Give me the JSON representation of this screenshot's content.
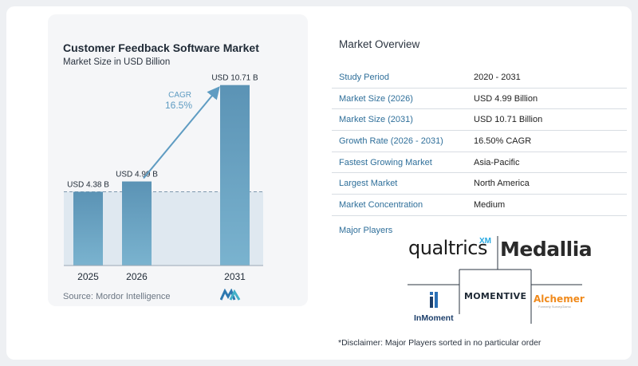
{
  "chart_data": {
    "type": "bar",
    "title": "Customer Feedback Software Market",
    "subtitle": "Market Size in USD Billion",
    "categories": [
      "2025",
      "2026",
      "2031"
    ],
    "values": [
      4.38,
      4.99,
      10.71
    ],
    "data_labels": [
      "USD 4.38 B",
      "USD 4.99 B",
      "USD 10.71 B"
    ],
    "cagr_label": "CAGR",
    "cagr_value": "16.5%",
    "ylim": [
      0,
      11.5
    ],
    "grid": false,
    "colors": {
      "bar_top": "#5b93b5",
      "bar_bottom": "#7ab3cf",
      "band": "#dfe8f0",
      "arrow": "#5f9cc2",
      "cagr_text": "#5f9cc2"
    }
  },
  "source": "Source:  Mordor Intelligence",
  "overview": {
    "title": "Market Overview",
    "rows": [
      {
        "label": "Study Period",
        "value": "2020 - 2031"
      },
      {
        "label": "Market Size (2026)",
        "value": "USD 4.99 Billion"
      },
      {
        "label": "Market Size (2031)",
        "value": "USD 10.71 Billion"
      },
      {
        "label": "Growth Rate (2026 - 2031)",
        "value": "16.50% CAGR"
      },
      {
        "label": "Fastest Growing Market",
        "value": "Asia-Pacific"
      },
      {
        "label": "Largest Market",
        "value": "North America"
      },
      {
        "label": "Market Concentration",
        "value": "Medium"
      }
    ]
  },
  "players": {
    "title": "Major Players",
    "qualtrics": "qualtrics",
    "qualtrics_sup": "XM",
    "medallia": "Medallia",
    "momentive": "MOMENTIVE",
    "inmoment": "InMoment",
    "alchemer": "Alchemer",
    "alchemer_tagline": "Formerly SurveyGizmo"
  },
  "disclaimer": "*Disclaimer: Major Players sorted in no particular order"
}
